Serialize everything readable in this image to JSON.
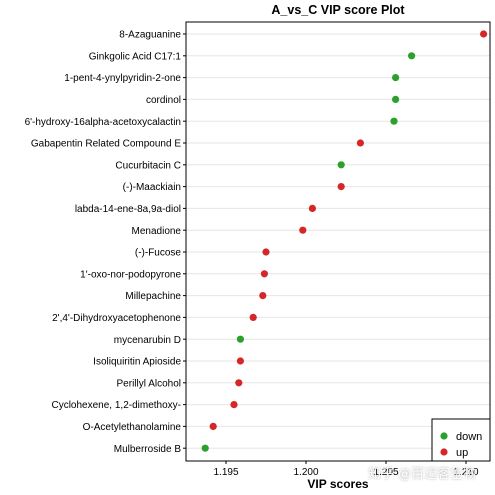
{
  "chart_data": {
    "type": "scatter",
    "title": "A_vs_C VIP score Plot",
    "xlabel": "VIP scores",
    "ylabel": "",
    "xlim": [
      1.1925,
      1.2115
    ],
    "xticks": [
      1.195,
      1.2,
      1.205,
      1.21
    ],
    "xtick_labels": [
      "1.195",
      "1.200",
      "1.205",
      "1.210"
    ],
    "categories": [
      "8-Azaguanine",
      "Ginkgolic Acid C17:1",
      "1-pent-4-ynylpyridin-2-one",
      "cordinol",
      "6'-hydroxy-16alpha-acetoxycalactin",
      "Gabapentin Related Compound E",
      "Cucurbitacin C",
      "(-)-Maackiain",
      "labda-14-ene-8a,9a-diol",
      "Menadione",
      "(-)-Fucose",
      "1'-oxo-nor-podopyrone",
      "Millepachine",
      "2',4'-Dihydroxyacetophenone",
      "mycenarubin D",
      "Isoliquiritin Apioside",
      "Perillyl Alcohol",
      "Cyclohexene, 1,2-dimethoxy-",
      "O-Acetylethanolamine",
      "Mulberroside B"
    ],
    "values": [
      1.2111,
      1.2066,
      1.2056,
      1.2056,
      1.2055,
      1.2034,
      1.2022,
      1.2022,
      1.2004,
      1.1998,
      1.1975,
      1.1974,
      1.1973,
      1.1967,
      1.1959,
      1.1959,
      1.1958,
      1.1955,
      1.1942,
      1.1937
    ],
    "groups": [
      "up",
      "down",
      "down",
      "down",
      "down",
      "up",
      "down",
      "up",
      "up",
      "up",
      "up",
      "up",
      "up",
      "up",
      "down",
      "up",
      "up",
      "up",
      "up",
      "down"
    ],
    "series": [
      {
        "name": "down",
        "color": "#2ca02c"
      },
      {
        "name": "up",
        "color": "#d62728"
      }
    ],
    "legend_position": "bottom-right",
    "grid": "horizontal"
  },
  "watermark": "知乎 @百迈客生物"
}
